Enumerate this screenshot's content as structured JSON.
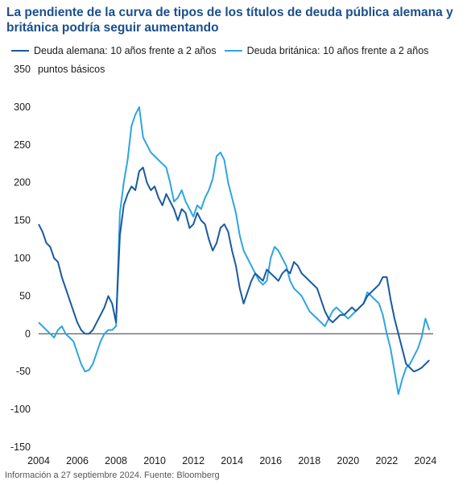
{
  "chart_data": {
    "type": "line",
    "title": "La pendiente de la curva de tipos de los títulos de deuda pública alemana y británica podría seguir aumentando",
    "ylabel": "puntos básicos",
    "ylim": [
      -150,
      350
    ],
    "yticks": [
      350,
      300,
      250,
      200,
      150,
      100,
      50,
      0,
      -50,
      -100,
      -150
    ],
    "xlim": [
      2004,
      2024.4
    ],
    "xticks": [
      2004,
      2006,
      2008,
      2010,
      2012,
      2014,
      2016,
      2018,
      2020,
      2022,
      2024
    ],
    "grid": false,
    "legend_position": "top",
    "series": [
      {
        "name": "Deuda alemana: 10 años frente a 2 años",
        "color": "#1a5aa0",
        "x": [
          2004.0,
          2004.2,
          2004.4,
          2004.6,
          2004.8,
          2005.0,
          2005.2,
          2005.4,
          2005.6,
          2005.8,
          2006.0,
          2006.2,
          2006.4,
          2006.6,
          2006.8,
          2007.0,
          2007.2,
          2007.4,
          2007.6,
          2007.8,
          2008.0,
          2008.2,
          2008.4,
          2008.6,
          2008.8,
          2009.0,
          2009.2,
          2009.4,
          2009.6,
          2009.8,
          2010.0,
          2010.2,
          2010.4,
          2010.6,
          2010.8,
          2011.0,
          2011.2,
          2011.4,
          2011.6,
          2011.8,
          2012.0,
          2012.2,
          2012.4,
          2012.6,
          2012.8,
          2013.0,
          2013.2,
          2013.4,
          2013.6,
          2013.8,
          2014.0,
          2014.2,
          2014.4,
          2014.6,
          2014.8,
          2015.0,
          2015.2,
          2015.4,
          2015.6,
          2015.8,
          2016.0,
          2016.2,
          2016.4,
          2016.6,
          2016.8,
          2017.0,
          2017.2,
          2017.4,
          2017.6,
          2017.8,
          2018.0,
          2018.2,
          2018.4,
          2018.6,
          2018.8,
          2019.0,
          2019.2,
          2019.4,
          2019.6,
          2019.8,
          2020.0,
          2020.2,
          2020.4,
          2020.6,
          2020.8,
          2021.0,
          2021.2,
          2021.4,
          2021.6,
          2021.8,
          2022.0,
          2022.2,
          2022.4,
          2022.6,
          2022.8,
          2023.0,
          2023.2,
          2023.4,
          2023.6,
          2023.8,
          2024.0,
          2024.2
        ],
        "values": [
          145,
          135,
          120,
          115,
          100,
          95,
          75,
          60,
          45,
          30,
          15,
          5,
          0,
          0,
          5,
          15,
          25,
          35,
          50,
          40,
          15,
          130,
          170,
          185,
          195,
          190,
          215,
          220,
          200,
          190,
          195,
          180,
          170,
          185,
          175,
          165,
          150,
          165,
          160,
          140,
          145,
          160,
          150,
          145,
          125,
          110,
          120,
          140,
          145,
          135,
          110,
          90,
          60,
          40,
          55,
          70,
          80,
          75,
          70,
          85,
          80,
          75,
          70,
          80,
          85,
          80,
          95,
          90,
          80,
          75,
          70,
          65,
          60,
          45,
          30,
          20,
          15,
          20,
          25,
          25,
          30,
          35,
          30,
          35,
          40,
          50,
          55,
          60,
          65,
          75,
          75,
          45,
          20,
          0,
          -20,
          -40,
          -45,
          -50,
          -48,
          -45,
          -40,
          -35
        ]
      },
      {
        "name": "Deuda británica: 10 años frente a 2 años",
        "color": "#2ea5e0",
        "x": [
          2004.0,
          2004.2,
          2004.4,
          2004.6,
          2004.8,
          2005.0,
          2005.2,
          2005.4,
          2005.6,
          2005.8,
          2006.0,
          2006.2,
          2006.4,
          2006.6,
          2006.8,
          2007.0,
          2007.2,
          2007.4,
          2007.6,
          2007.8,
          2008.0,
          2008.2,
          2008.4,
          2008.6,
          2008.8,
          2009.0,
          2009.2,
          2009.4,
          2009.6,
          2009.8,
          2010.0,
          2010.2,
          2010.4,
          2010.6,
          2010.8,
          2011.0,
          2011.2,
          2011.4,
          2011.6,
          2011.8,
          2012.0,
          2012.2,
          2012.4,
          2012.6,
          2012.8,
          2013.0,
          2013.2,
          2013.4,
          2013.6,
          2013.8,
          2014.0,
          2014.2,
          2014.4,
          2014.6,
          2014.8,
          2015.0,
          2015.2,
          2015.4,
          2015.6,
          2015.8,
          2016.0,
          2016.2,
          2016.4,
          2016.6,
          2016.8,
          2017.0,
          2017.2,
          2017.4,
          2017.6,
          2017.8,
          2018.0,
          2018.2,
          2018.4,
          2018.6,
          2018.8,
          2019.0,
          2019.2,
          2019.4,
          2019.6,
          2019.8,
          2020.0,
          2020.2,
          2020.4,
          2020.6,
          2020.8,
          2021.0,
          2021.2,
          2021.4,
          2021.6,
          2021.8,
          2022.0,
          2022.2,
          2022.4,
          2022.6,
          2022.8,
          2023.0,
          2023.2,
          2023.4,
          2023.6,
          2023.8,
          2024.0,
          2024.2
        ],
        "values": [
          15,
          10,
          5,
          0,
          -5,
          5,
          10,
          0,
          -5,
          -10,
          -25,
          -40,
          -50,
          -48,
          -40,
          -25,
          -10,
          0,
          5,
          5,
          10,
          160,
          200,
          230,
          275,
          290,
          300,
          260,
          250,
          240,
          235,
          230,
          225,
          220,
          200,
          175,
          180,
          190,
          175,
          165,
          155,
          170,
          165,
          180,
          190,
          205,
          235,
          240,
          230,
          200,
          180,
          160,
          130,
          110,
          100,
          90,
          80,
          70,
          65,
          70,
          100,
          115,
          110,
          100,
          90,
          70,
          60,
          55,
          50,
          40,
          30,
          25,
          20,
          15,
          10,
          20,
          30,
          35,
          30,
          25,
          20,
          25,
          30,
          35,
          40,
          55,
          50,
          45,
          40,
          25,
          0,
          -20,
          -50,
          -80,
          -60,
          -45,
          -40,
          -30,
          -20,
          -5,
          20,
          5
        ]
      }
    ]
  },
  "header": {
    "title": "La pendiente de la curva de tipos de los títulos de deuda pública alemana y británica podría seguir aumentando"
  },
  "legend": {
    "items": [
      {
        "label": "Deuda alemana: 10 años frente a 2 años",
        "color": "#1a5aa0"
      },
      {
        "label": "Deuda británica: 10 años frente a 2 años",
        "color": "#2ea5e0"
      }
    ]
  },
  "axis": {
    "unit_label": "puntos básicos"
  },
  "footer": {
    "source": "Información a 27 septiembre 2024. Fuente: Bloomberg"
  }
}
